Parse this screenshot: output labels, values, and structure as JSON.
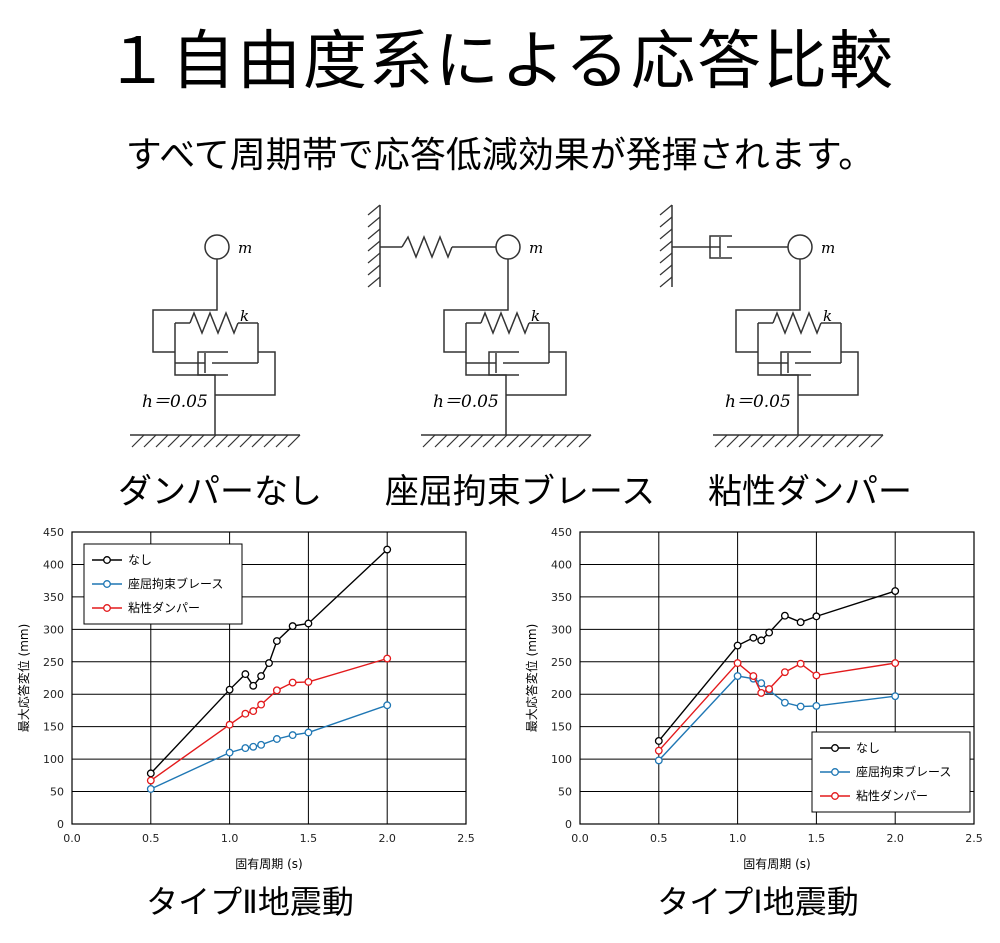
{
  "header": {
    "title": "１自由度系による応答比較",
    "subtitle": "すべて周期帯で応答低減効果が発揮されます。"
  },
  "diagrams": [
    {
      "label": "ダンパーなし",
      "mass": "m",
      "stiffness": "k",
      "damping": "h＝0.05"
    },
    {
      "label": "座屈拘束ブレース",
      "mass": "m",
      "stiffness": "k",
      "damping": "h＝0.05"
    },
    {
      "label": "粘性ダンパー",
      "mass": "m",
      "stiffness": "k",
      "damping": "h＝0.05"
    }
  ],
  "chart_data": [
    {
      "type": "line",
      "caption": "タイプⅡ地震動",
      "xlabel": "固有周期 (s)",
      "ylabel": "最大応答変位 (mm)",
      "xlim": [
        0.0,
        2.5
      ],
      "ylim": [
        0,
        450
      ],
      "xticks": [
        "0.0",
        "0.5",
        "1.0",
        "1.5",
        "2.0",
        "2.5"
      ],
      "yticks": [
        "0",
        "50",
        "100",
        "150",
        "200",
        "250",
        "300",
        "350",
        "400",
        "450"
      ],
      "grid": true,
      "legend_position": "top-left",
      "series": [
        {
          "name": "なし",
          "color": "#000000",
          "x": [
            0.5,
            1.0,
            1.1,
            1.15,
            1.2,
            1.25,
            1.3,
            1.4,
            1.5,
            2.0
          ],
          "y": [
            78,
            207,
            231,
            213,
            228,
            248,
            282,
            305,
            309,
            423
          ]
        },
        {
          "name": "座屈拘束ブレース",
          "color": "#1f77b4",
          "x": [
            0.5,
            1.0,
            1.1,
            1.15,
            1.2,
            1.3,
            1.4,
            1.5,
            2.0
          ],
          "y": [
            54,
            110,
            117,
            119,
            122,
            131,
            137,
            141,
            183
          ]
        },
        {
          "name": "粘性ダンパー",
          "color": "#e31a1c",
          "x": [
            0.5,
            1.0,
            1.1,
            1.15,
            1.2,
            1.3,
            1.4,
            1.5,
            2.0
          ],
          "y": [
            67,
            153,
            170,
            174,
            184,
            206,
            218,
            219,
            255
          ]
        }
      ]
    },
    {
      "type": "line",
      "caption": "タイプⅠ地震動",
      "xlabel": "固有周期 (s)",
      "ylabel": "最大応答変位 (mm)",
      "xlim": [
        0.0,
        2.5
      ],
      "ylim": [
        0,
        450
      ],
      "xticks": [
        "0.0",
        "0.5",
        "1.0",
        "1.5",
        "2.0",
        "2.5"
      ],
      "yticks": [
        "0",
        "50",
        "100",
        "150",
        "200",
        "250",
        "300",
        "350",
        "400",
        "450"
      ],
      "grid": true,
      "legend_position": "bottom-right",
      "series": [
        {
          "name": "なし",
          "color": "#000000",
          "x": [
            0.5,
            1.0,
            1.1,
            1.15,
            1.2,
            1.3,
            1.4,
            1.5,
            2.0
          ],
          "y": [
            128,
            275,
            287,
            283,
            295,
            321,
            311,
            320,
            359
          ]
        },
        {
          "name": "座屈拘束ブレース",
          "color": "#1f77b4",
          "x": [
            0.5,
            1.0,
            1.1,
            1.15,
            1.2,
            1.3,
            1.4,
            1.5,
            2.0
          ],
          "y": [
            98,
            228,
            224,
            217,
            206,
            187,
            181,
            182,
            197
          ]
        },
        {
          "name": "粘性ダンパー",
          "color": "#e31a1c",
          "x": [
            0.5,
            1.0,
            1.1,
            1.15,
            1.2,
            1.3,
            1.4,
            1.5,
            2.0
          ],
          "y": [
            113,
            248,
            228,
            202,
            208,
            234,
            247,
            229,
            248
          ]
        }
      ]
    }
  ]
}
